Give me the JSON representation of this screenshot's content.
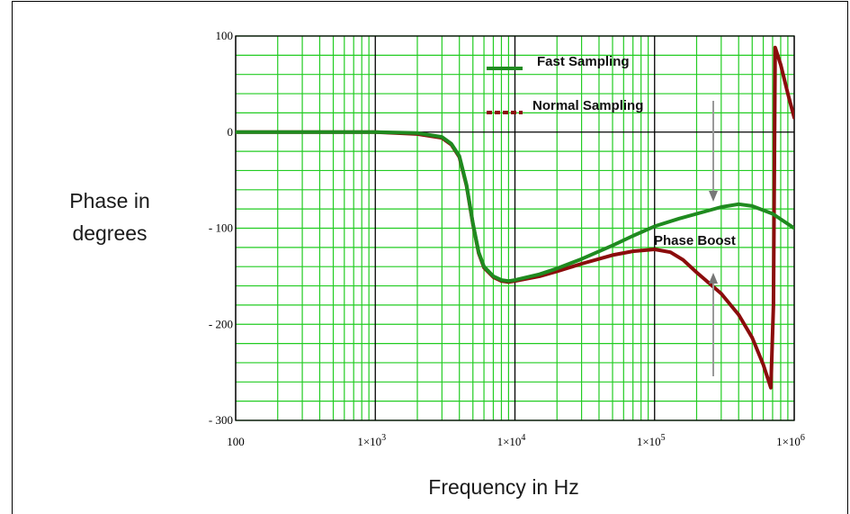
{
  "chart_data": {
    "type": "line",
    "xlabel": "Frequency in Hz",
    "ylabel_line1": "Phase in",
    "ylabel_line2": "degrees",
    "xscale": "log",
    "xlim": [
      100,
      1000000
    ],
    "ylim": [
      -300,
      100
    ],
    "grid": true,
    "legend_position": "top-center",
    "x_ticks": [
      {
        "value": 100,
        "label": "100"
      },
      {
        "value": 1000,
        "label": "1×10",
        "exp": "3"
      },
      {
        "value": 10000,
        "label": "1×10",
        "exp": "4"
      },
      {
        "value": 100000,
        "label": "1×10",
        "exp": "5"
      },
      {
        "value": 1000000,
        "label": "1×10",
        "exp": "6"
      }
    ],
    "y_ticks": [
      {
        "value": 100,
        "label": "100"
      },
      {
        "value": 0,
        "label": "0"
      },
      {
        "value": -100,
        "label": "- 100"
      },
      {
        "value": -200,
        "label": "- 200"
      },
      {
        "value": -300,
        "label": "- 300"
      }
    ],
    "series": [
      {
        "name": "Fast Sampling",
        "color": "#1f8a1f",
        "x": [
          100,
          1000,
          2000,
          3000,
          3500,
          4000,
          4500,
          5000,
          5500,
          6000,
          7000,
          8000,
          9000,
          10000,
          15000,
          20000,
          30000,
          50000,
          70000,
          100000,
          150000,
          200000,
          300000,
          400000,
          500000,
          700000,
          1000000
        ],
        "y": [
          0,
          0,
          -1,
          -5,
          -12,
          -25,
          -55,
          -95,
          -125,
          -140,
          -150,
          -154,
          -155,
          -154,
          -148,
          -142,
          -132,
          -118,
          -108,
          -98,
          -90,
          -85,
          -78,
          -75,
          -77,
          -85,
          -100
        ]
      },
      {
        "name": "Normal Sampling",
        "color": "#8b0c0c",
        "x": [
          100,
          1000,
          2000,
          3000,
          3500,
          4000,
          4500,
          5000,
          5500,
          6000,
          7000,
          8000,
          9000,
          10000,
          15000,
          20000,
          30000,
          50000,
          70000,
          100000,
          130000,
          160000,
          200000,
          300000,
          400000,
          500000,
          600000,
          680000,
          710000,
          730000,
          800000,
          900000,
          1000000
        ],
        "y": [
          0,
          0,
          -2,
          -6,
          -13,
          -26,
          -56,
          -96,
          -126,
          -141,
          -151,
          -155,
          -156,
          -155,
          -150,
          -145,
          -137,
          -128,
          -124,
          -122,
          -125,
          -133,
          -146,
          -168,
          -190,
          -214,
          -242,
          -266,
          -180,
          88,
          70,
          40,
          15
        ]
      }
    ],
    "annotations": [
      {
        "text": "Phase Boost"
      }
    ]
  }
}
